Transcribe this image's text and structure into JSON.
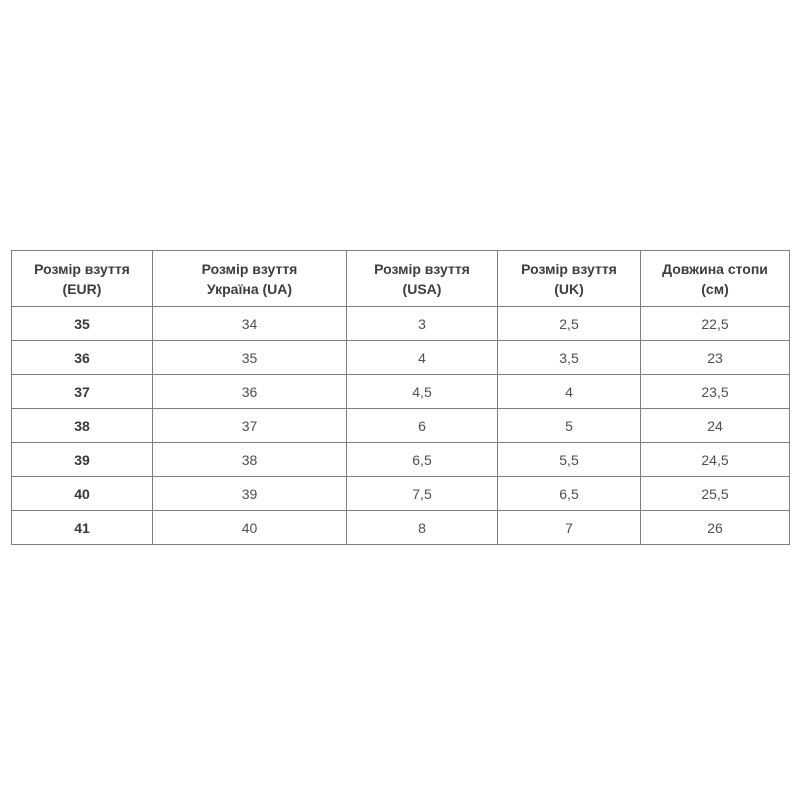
{
  "chart_data": {
    "type": "table",
    "title": "",
    "columns": [
      {
        "line1": "Розмір взуття",
        "line2": "(EUR)"
      },
      {
        "line1": "Розмір взуття",
        "line2": "Україна (UA)"
      },
      {
        "line1": "Розмір взуття",
        "line2": "(USA)"
      },
      {
        "line1": "Розмір взуття",
        "line2": "(UK)"
      },
      {
        "line1": "Довжина стопи",
        "line2": "(см)"
      }
    ],
    "rows": [
      [
        "35",
        "34",
        "3",
        "2,5",
        "22,5"
      ],
      [
        "36",
        "35",
        "4",
        "3,5",
        "23"
      ],
      [
        "37",
        "36",
        "4,5",
        "4",
        "23,5"
      ],
      [
        "38",
        "37",
        "6",
        "5",
        "24"
      ],
      [
        "39",
        "38",
        "6,5",
        "5,5",
        "24,5"
      ],
      [
        "40",
        "39",
        "7,5",
        "6,5",
        "25,5"
      ],
      [
        "41",
        "40",
        "8",
        "7",
        "26"
      ]
    ]
  },
  "colors": {
    "border": "#7f7f7f",
    "header_text": "#3d3d3d",
    "cell_text": "#4f4f4f",
    "first_column_text": "#383838",
    "background": "#ffffff"
  }
}
